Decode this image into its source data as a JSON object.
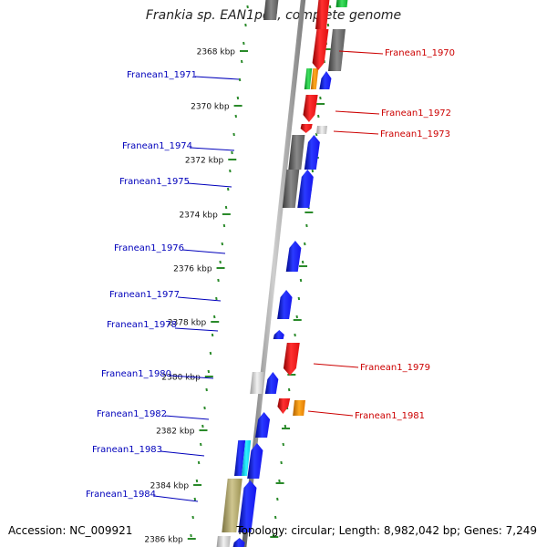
{
  "header": {
    "title": "Frankia sp. EAN1pec, complete genome"
  },
  "footer": {
    "accession": "Accession: NC_009921",
    "topology": "Topology: circular; Length: 8,982,042 bp; Genes: 7,249"
  },
  "scale_labels": [
    "2368 kbp",
    "2370 kbp",
    "2372 kbp",
    "2374 kbp",
    "2376 kbp",
    "2378 kbp",
    "2380 kbp",
    "2382 kbp",
    "2384 kbp",
    "2386 kbp"
  ],
  "genes_left": [
    {
      "label": "Franean1_1971"
    },
    {
      "label": "Franean1_1974"
    },
    {
      "label": "Franean1_1975"
    },
    {
      "label": "Franean1_1976"
    },
    {
      "label": "Franean1_1977"
    },
    {
      "label": "Franean1_1978"
    },
    {
      "label": "Franean1_1980"
    },
    {
      "label": "Franean1_1982"
    },
    {
      "label": "Franean1_1983"
    },
    {
      "label": "Franean1_1984"
    }
  ],
  "genes_right": [
    {
      "label": "Franean1_1970"
    },
    {
      "label": "Franean1_1972"
    },
    {
      "label": "Franean1_1973"
    },
    {
      "label": "Franean1_1979"
    },
    {
      "label": "Franean1_1981"
    }
  ],
  "colors": {
    "forward_strand": "#1010ee",
    "reverse_strand": "#ee1111",
    "pseudo_gray": "#777777",
    "label_blue": "#0000bb",
    "label_red": "#cc0000",
    "tick_green": "#2a8a2a",
    "backbone": "#8a8a8a"
  }
}
